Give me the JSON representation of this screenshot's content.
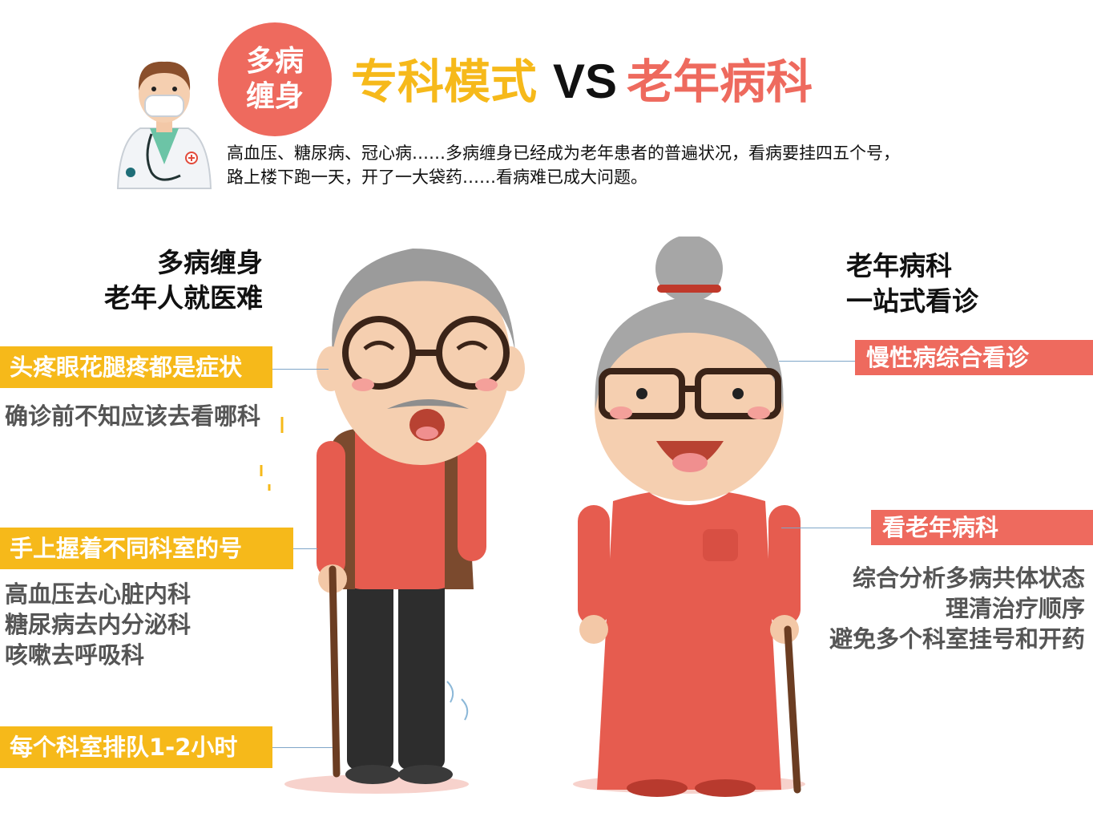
{
  "header": {
    "badge_line1": "多病",
    "badge_line2": "缠身",
    "title_left": "专科模式",
    "title_vs": "VS",
    "title_right": "老年病科",
    "intro_line1": "高血压、糖尿病、冠心病……多病缠身已经成为老年患者的普遍状况，看病要挂四五个号，",
    "intro_line2": "路上楼下跑一天，开了一大袋药……看病难已成大问题。"
  },
  "left": {
    "heading_line1": "多病缠身",
    "heading_line2": "老年人就医难",
    "label1": "头疼眼花腿疼都是症状",
    "desc1": "确诊前不知应该去看哪科",
    "label2": "手上握着不同科室的号",
    "desc2": [
      "高血压去心脏内科",
      "糖尿病去内分泌科",
      "咳嗽去呼吸科"
    ],
    "label3": "每个科室排队1-2小时"
  },
  "right": {
    "heading_line1": "老年病科",
    "heading_line2": "一站式看诊",
    "label1": "慢性病综合看诊",
    "label2": "看老年病科",
    "desc2": [
      "综合分析多病共体状态",
      "理清治疗顺序",
      "避免多个科室挂号和开药"
    ]
  },
  "colors": {
    "yellow": "#f6b91a",
    "coral": "#ee6a5e",
    "text_gray": "#555555"
  },
  "icons": {
    "doctor": "doctor-illustration",
    "old_man": "old-man-illustration",
    "old_woman": "old-woman-illustration"
  }
}
